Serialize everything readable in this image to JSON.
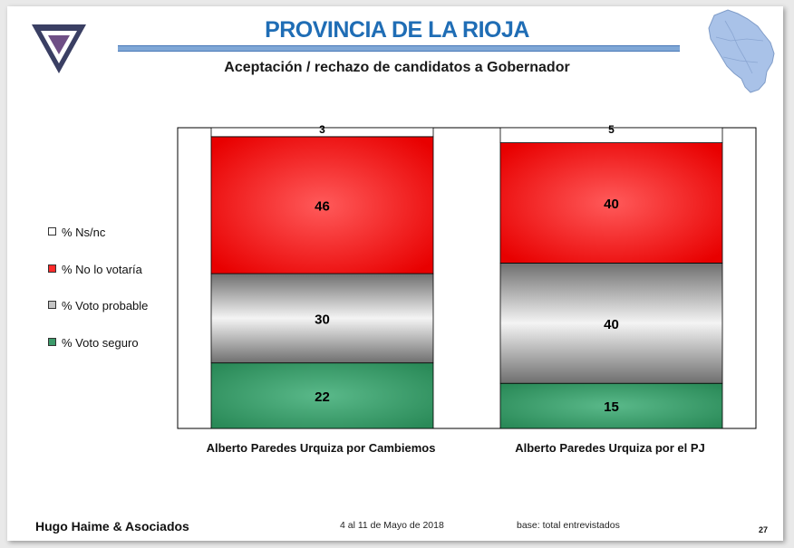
{
  "header": {
    "title": "PROVINCIA DE LA RIOJA",
    "subtitle": "Aceptación / rechazo de candidatos a Gobernador"
  },
  "footer": {
    "company": "Hugo Haime & Asociados",
    "date": "4 al 11 de Mayo de 2018",
    "base": "base: total entrevistados",
    "page": "27"
  },
  "colors": {
    "ns_nc": "#ffffff",
    "no_votaria": "#ff2a2a",
    "probable": "#c4c4c4",
    "seguro": "#3c9a6a",
    "title": "#1f6db5",
    "map": "#a9c2e8"
  },
  "chart_data": {
    "type": "bar",
    "stacked": true,
    "categories": [
      "Alberto Paredes Urquiza  por Cambiemos",
      "Alberto Paredes Urquiza por el PJ"
    ],
    "series": [
      {
        "name": "% Voto seguro",
        "values": [
          22,
          15
        ]
      },
      {
        "name": "% Voto probable",
        "values": [
          30,
          40
        ]
      },
      {
        "name": "% No lo votaría",
        "values": [
          46,
          40
        ]
      },
      {
        "name": "% Ns/nc",
        "values": [
          3,
          5
        ]
      }
    ],
    "legend_position": "left",
    "ylim": [
      0,
      100
    ]
  }
}
